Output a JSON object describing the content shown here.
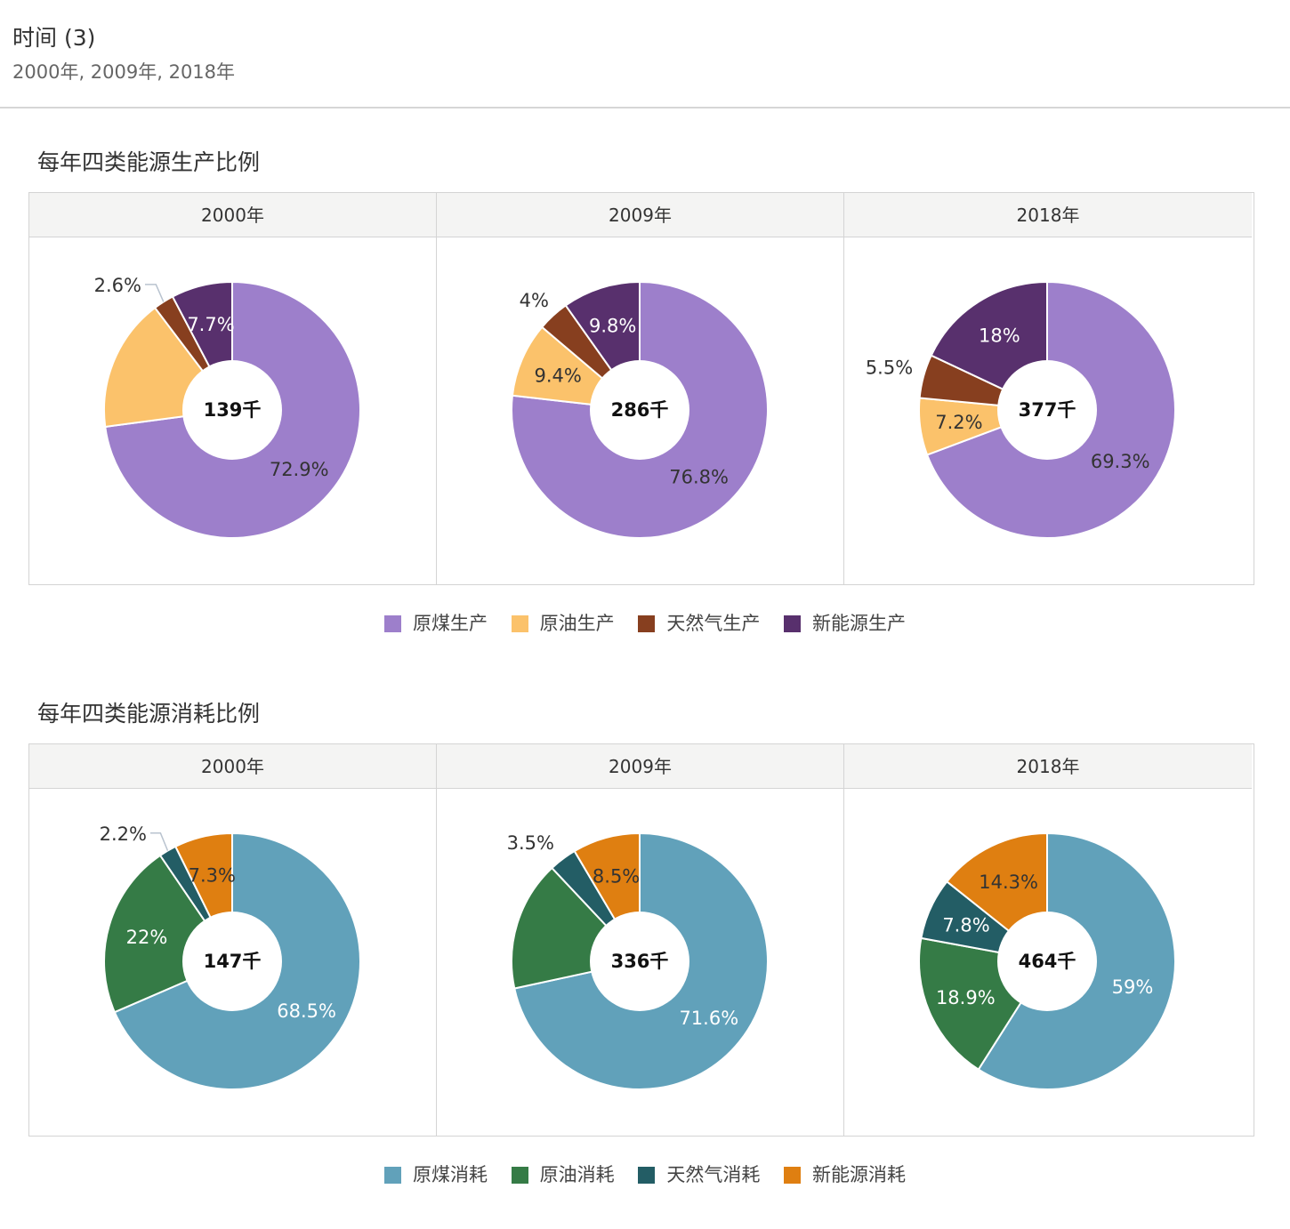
{
  "filter": {
    "title": "时间 (3)",
    "values": "2000年, 2009年, 2018年"
  },
  "colors": {
    "coal_prod": "#9d7fcb",
    "oil_prod": "#fbc26b",
    "gas_prod": "#873f1f",
    "new_prod": "#58306d",
    "coal_cons": "#61a1ba",
    "oil_cons": "#357b46",
    "gas_cons": "#235d65",
    "new_cons": "#df7f11"
  },
  "chart_data": [
    {
      "type": "pie",
      "title": "每年四类能源生产比例",
      "legend": [
        "原煤生产",
        "原油生产",
        "天然气生产",
        "新能源生产"
      ],
      "panels": [
        {
          "label": "2000年",
          "total": "139千",
          "values": [
            72.9,
            16.8,
            2.6,
            7.7
          ],
          "labels": [
            "72.9%",
            "",
            "2.6%",
            "7.7%"
          ]
        },
        {
          "label": "2009年",
          "total": "286千",
          "values": [
            76.8,
            9.4,
            4.0,
            9.8
          ],
          "labels": [
            "76.8%",
            "9.4%",
            "4%",
            "9.8%"
          ]
        },
        {
          "label": "2018年",
          "total": "377千",
          "values": [
            69.3,
            7.2,
            5.5,
            18.0
          ],
          "labels": [
            "69.3%",
            "7.2%",
            "5.5%",
            "18%"
          ]
        }
      ]
    },
    {
      "type": "pie",
      "title": "每年四类能源消耗比例",
      "legend": [
        "原煤消耗",
        "原油消耗",
        "天然气消耗",
        "新能源消耗"
      ],
      "panels": [
        {
          "label": "2000年",
          "total": "147千",
          "values": [
            68.5,
            22.0,
            2.2,
            7.3
          ],
          "labels": [
            "68.5%",
            "22%",
            "2.2%",
            "7.3%"
          ]
        },
        {
          "label": "2009年",
          "total": "336千",
          "values": [
            71.6,
            16.4,
            3.5,
            8.5
          ],
          "labels": [
            "71.6%",
            "",
            "3.5%",
            "8.5%"
          ]
        },
        {
          "label": "2018年",
          "total": "464千",
          "values": [
            59.0,
            18.9,
            7.8,
            14.3
          ],
          "labels": [
            "59%",
            "18.9%",
            "7.8%",
            "14.3%"
          ]
        }
      ]
    }
  ]
}
